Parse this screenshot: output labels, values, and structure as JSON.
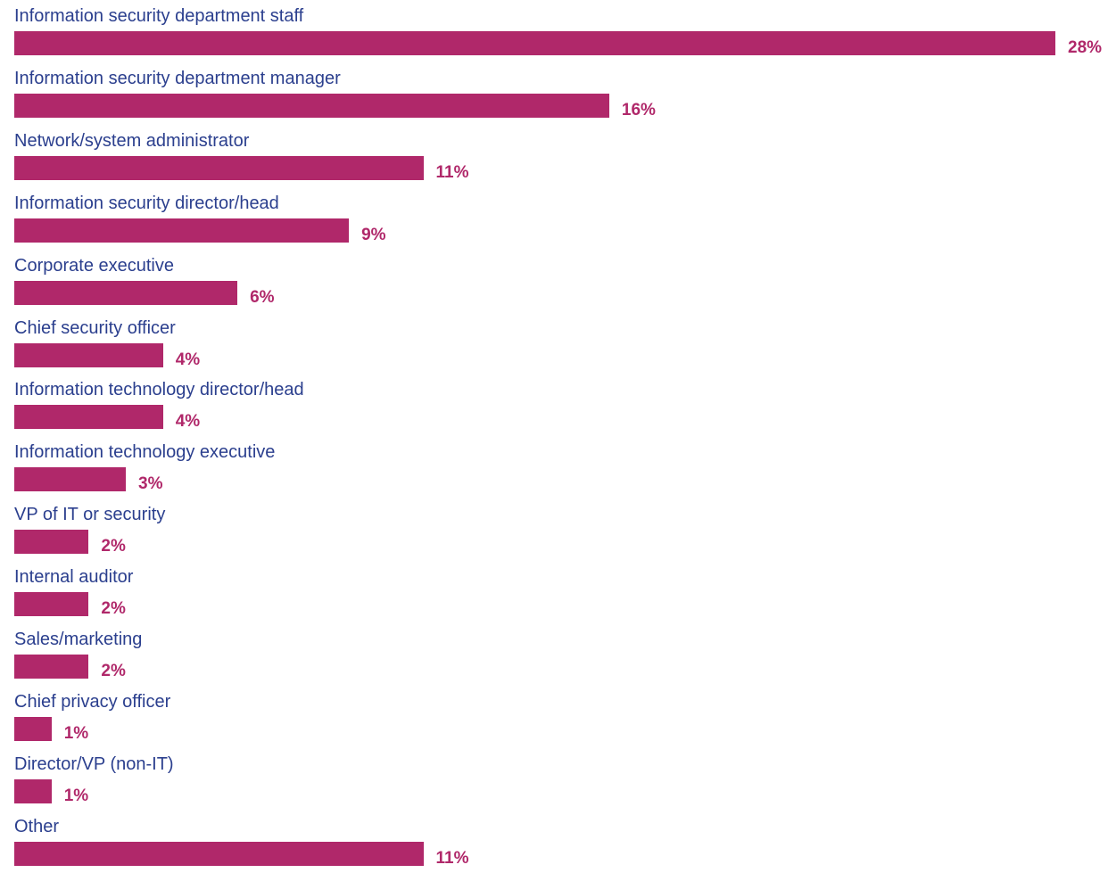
{
  "chart_data": {
    "type": "bar",
    "orientation": "horizontal",
    "categories": [
      "Information security department staff",
      "Information security department manager",
      "Network/system administrator",
      "Information security director/head",
      "Corporate executive",
      "Chief security officer",
      "Information technology director/head",
      "Information technology executive",
      "VP of IT or security",
      "Internal auditor",
      "Sales/marketing",
      "Chief privacy officer",
      "Director/VP (non-IT)",
      "Other"
    ],
    "values": [
      28,
      16,
      11,
      9,
      6,
      4,
      4,
      3,
      2,
      2,
      2,
      1,
      1,
      11
    ],
    "value_labels": [
      "28%",
      "16%",
      "11%",
      "9%",
      "6%",
      "4%",
      "4%",
      "3%",
      "2%",
      "2%",
      "2%",
      "1%",
      "1%",
      "11%"
    ],
    "xlim": [
      0,
      28
    ],
    "grid": false,
    "colors": {
      "bar": "#b0286a",
      "category_label": "#2b3f8e",
      "value_label": "#b0286a"
    }
  }
}
